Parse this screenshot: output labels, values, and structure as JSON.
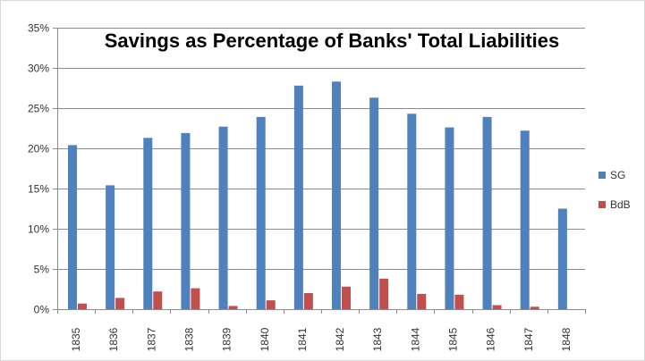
{
  "chart_data": {
    "type": "bar",
    "title": "Savings as Percentage of Banks' Total Liabilities",
    "categories": [
      "1835",
      "1836",
      "1837",
      "1838",
      "1839",
      "1840",
      "1841",
      "1842",
      "1843",
      "1844",
      "1845",
      "1846",
      "1847",
      "1848"
    ],
    "series": [
      {
        "name": "SG",
        "color": "#4f81bd",
        "values": [
          20.4,
          15.4,
          21.3,
          21.9,
          22.7,
          23.9,
          27.8,
          28.3,
          26.3,
          24.3,
          22.6,
          23.9,
          22.2,
          12.5
        ]
      },
      {
        "name": "BdB",
        "color": "#c0504d",
        "values": [
          0.7,
          1.4,
          2.2,
          2.6,
          0.4,
          1.1,
          2.0,
          2.8,
          3.8,
          1.9,
          1.8,
          0.5,
          0.3,
          0.0
        ]
      }
    ],
    "ylim": [
      0,
      35
    ],
    "yticks": [
      "0%",
      "5%",
      "10%",
      "15%",
      "20%",
      "25%",
      "30%",
      "35%"
    ],
    "xlabel": "",
    "ylabel": "",
    "grid": true,
    "legend": "right"
  }
}
